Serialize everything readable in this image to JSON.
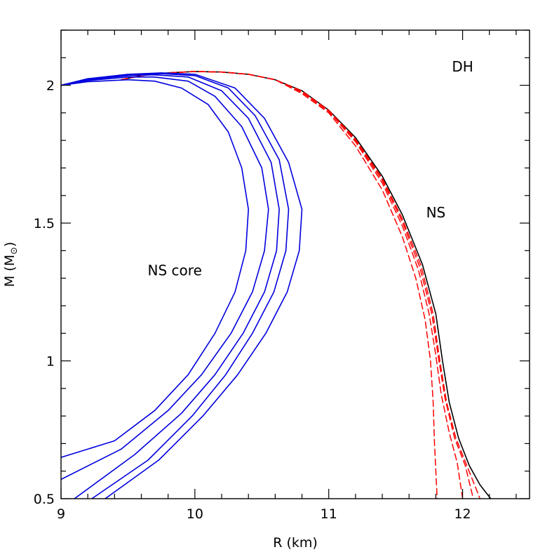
{
  "chart_data": {
    "type": "line",
    "title": "",
    "xlabel": "R (km)",
    "ylabel_main": "M (M",
    "ylabel_sub": "⊙",
    "ylabel_close": ")",
    "xlim": [
      9,
      12.5
    ],
    "ylim": [
      0.5,
      2.2
    ],
    "x_ticks": [
      9,
      10,
      11,
      12
    ],
    "x_tick_labels": [
      "9",
      "10",
      "11",
      "12"
    ],
    "y_ticks": [
      0.5,
      1,
      1.5,
      2
    ],
    "y_tick_labels": [
      "0.5",
      "1",
      "1.5",
      "2"
    ],
    "grid": false,
    "annotations": [
      {
        "text": "DH",
        "x": 12.0,
        "y": 2.05
      },
      {
        "text": "NS",
        "x": 11.8,
        "y": 1.52
      },
      {
        "text": "NS core",
        "x": 9.85,
        "y": 1.31
      }
    ],
    "series": [
      {
        "style": "solid",
        "color": "#000000",
        "points": [
          [
            9.45,
            2.02
          ],
          [
            9.6,
            2.035
          ],
          [
            9.8,
            2.045
          ],
          [
            10.0,
            2.05
          ],
          [
            10.2,
            2.048
          ],
          [
            10.4,
            2.04
          ],
          [
            10.6,
            2.02
          ],
          [
            10.8,
            1.98
          ],
          [
            11.0,
            1.91
          ],
          [
            11.2,
            1.81
          ],
          [
            11.4,
            1.67
          ],
          [
            11.55,
            1.53
          ],
          [
            11.7,
            1.35
          ],
          [
            11.8,
            1.17
          ],
          [
            11.85,
            1.0
          ],
          [
            11.9,
            0.85
          ],
          [
            11.97,
            0.72
          ],
          [
            12.05,
            0.62
          ],
          [
            12.13,
            0.55
          ],
          [
            12.21,
            0.5
          ]
        ]
      },
      {
        "style": "dashed",
        "color": "#ff0000",
        "points": [
          [
            9.45,
            2.02
          ],
          [
            9.6,
            2.035
          ],
          [
            9.8,
            2.045
          ],
          [
            10.0,
            2.05
          ],
          [
            10.2,
            2.048
          ],
          [
            10.4,
            2.04
          ],
          [
            10.6,
            2.02
          ],
          [
            10.8,
            1.97
          ],
          [
            11.0,
            1.9
          ],
          [
            11.2,
            1.78
          ],
          [
            11.4,
            1.62
          ],
          [
            11.55,
            1.45
          ],
          [
            11.65,
            1.3
          ],
          [
            11.72,
            1.15
          ],
          [
            11.76,
            1.0
          ],
          [
            11.78,
            0.85
          ],
          [
            11.79,
            0.7
          ],
          [
            11.8,
            0.6
          ],
          [
            11.81,
            0.5
          ]
        ]
      },
      {
        "style": "dashed",
        "color": "#ff0000",
        "points": [
          [
            9.45,
            2.02
          ],
          [
            9.6,
            2.035
          ],
          [
            9.8,
            2.045
          ],
          [
            10.0,
            2.05
          ],
          [
            10.2,
            2.048
          ],
          [
            10.4,
            2.04
          ],
          [
            10.6,
            2.02
          ],
          [
            10.8,
            1.975
          ],
          [
            11.0,
            1.905
          ],
          [
            11.2,
            1.795
          ],
          [
            11.4,
            1.645
          ],
          [
            11.55,
            1.49
          ],
          [
            11.67,
            1.33
          ],
          [
            11.75,
            1.17
          ],
          [
            11.8,
            1.02
          ],
          [
            11.84,
            0.88
          ],
          [
            11.9,
            0.74
          ],
          [
            11.96,
            0.63
          ],
          [
            12.0,
            0.5
          ]
        ]
      },
      {
        "style": "dashed",
        "color": "#ff0000",
        "points": [
          [
            9.45,
            2.02
          ],
          [
            9.6,
            2.035
          ],
          [
            9.8,
            2.045
          ],
          [
            10.0,
            2.05
          ],
          [
            10.2,
            2.048
          ],
          [
            10.4,
            2.04
          ],
          [
            10.6,
            2.02
          ],
          [
            10.8,
            1.978
          ],
          [
            11.0,
            1.907
          ],
          [
            11.2,
            1.8
          ],
          [
            11.4,
            1.655
          ],
          [
            11.55,
            1.505
          ],
          [
            11.68,
            1.34
          ],
          [
            11.77,
            1.17
          ],
          [
            11.82,
            1.01
          ],
          [
            11.87,
            0.86
          ],
          [
            11.94,
            0.72
          ],
          [
            12.02,
            0.62
          ],
          [
            12.08,
            0.5
          ]
        ]
      },
      {
        "style": "dashed",
        "color": "#ff0000",
        "points": [
          [
            9.45,
            2.02
          ],
          [
            9.6,
            2.035
          ],
          [
            9.8,
            2.045
          ],
          [
            10.0,
            2.05
          ],
          [
            10.2,
            2.048
          ],
          [
            10.4,
            2.04
          ],
          [
            10.6,
            2.02
          ],
          [
            10.8,
            1.979
          ],
          [
            11.0,
            1.909
          ],
          [
            11.2,
            1.805
          ],
          [
            11.4,
            1.662
          ],
          [
            11.55,
            1.515
          ],
          [
            11.69,
            1.345
          ],
          [
            11.78,
            1.17
          ],
          [
            11.83,
            1.0
          ],
          [
            11.88,
            0.85
          ],
          [
            11.95,
            0.72
          ],
          [
            12.04,
            0.61
          ],
          [
            12.13,
            0.5
          ]
        ]
      },
      {
        "style": "solid",
        "color": "#0000dd",
        "points": [
          [
            9.0,
            2.0
          ],
          [
            9.2,
            2.013
          ],
          [
            9.5,
            2.02
          ],
          [
            9.7,
            2.015
          ],
          [
            9.9,
            1.99
          ],
          [
            10.1,
            1.93
          ],
          [
            10.25,
            1.83
          ],
          [
            10.35,
            1.7
          ],
          [
            10.4,
            1.55
          ],
          [
            10.38,
            1.4
          ],
          [
            10.3,
            1.25
          ],
          [
            10.15,
            1.1
          ],
          [
            9.95,
            0.95
          ],
          [
            9.7,
            0.82
          ],
          [
            9.4,
            0.71
          ],
          [
            9.0,
            0.65
          ]
        ]
      },
      {
        "style": "solid",
        "color": "#0000dd",
        "points": [
          [
            9.0,
            2.0
          ],
          [
            9.2,
            2.017
          ],
          [
            9.5,
            2.03
          ],
          [
            9.7,
            2.03
          ],
          [
            9.95,
            2.015
          ],
          [
            10.15,
            1.96
          ],
          [
            10.35,
            1.85
          ],
          [
            10.5,
            1.7
          ],
          [
            10.55,
            1.55
          ],
          [
            10.52,
            1.4
          ],
          [
            10.43,
            1.25
          ],
          [
            10.27,
            1.1
          ],
          [
            10.05,
            0.95
          ],
          [
            9.8,
            0.82
          ],
          [
            9.45,
            0.68
          ],
          [
            9.0,
            0.57
          ]
        ]
      },
      {
        "style": "solid",
        "color": "#0000dd",
        "points": [
          [
            9.0,
            2.0
          ],
          [
            9.2,
            2.02
          ],
          [
            9.5,
            2.035
          ],
          [
            9.7,
            2.038
          ],
          [
            9.95,
            2.03
          ],
          [
            10.2,
            1.98
          ],
          [
            10.4,
            1.88
          ],
          [
            10.57,
            1.72
          ],
          [
            10.63,
            1.55
          ],
          [
            10.61,
            1.4
          ],
          [
            10.52,
            1.25
          ],
          [
            10.36,
            1.1
          ],
          [
            10.15,
            0.95
          ],
          [
            9.9,
            0.81
          ],
          [
            9.55,
            0.66
          ],
          [
            9.1,
            0.5
          ]
        ]
      },
      {
        "style": "solid",
        "color": "#0000dd",
        "points": [
          [
            9.0,
            2.0
          ],
          [
            9.2,
            2.022
          ],
          [
            9.5,
            2.038
          ],
          [
            9.75,
            2.042
          ],
          [
            10.0,
            2.035
          ],
          [
            10.25,
            1.99
          ],
          [
            10.45,
            1.89
          ],
          [
            10.63,
            1.73
          ],
          [
            10.7,
            1.55
          ],
          [
            10.68,
            1.4
          ],
          [
            10.59,
            1.25
          ],
          [
            10.43,
            1.1
          ],
          [
            10.23,
            0.95
          ],
          [
            9.98,
            0.8
          ],
          [
            9.65,
            0.64
          ],
          [
            9.23,
            0.5
          ]
        ]
      },
      {
        "style": "solid",
        "color": "#0000dd",
        "points": [
          [
            9.0,
            2.0
          ],
          [
            9.2,
            2.024
          ],
          [
            9.5,
            2.04
          ],
          [
            9.75,
            2.045
          ],
          [
            10.0,
            2.04
          ],
          [
            10.3,
            1.99
          ],
          [
            10.52,
            1.88
          ],
          [
            10.7,
            1.72
          ],
          [
            10.8,
            1.55
          ],
          [
            10.78,
            1.4
          ],
          [
            10.69,
            1.25
          ],
          [
            10.53,
            1.1
          ],
          [
            10.32,
            0.95
          ],
          [
            10.06,
            0.8
          ],
          [
            9.73,
            0.64
          ],
          [
            9.33,
            0.5
          ]
        ]
      }
    ]
  }
}
